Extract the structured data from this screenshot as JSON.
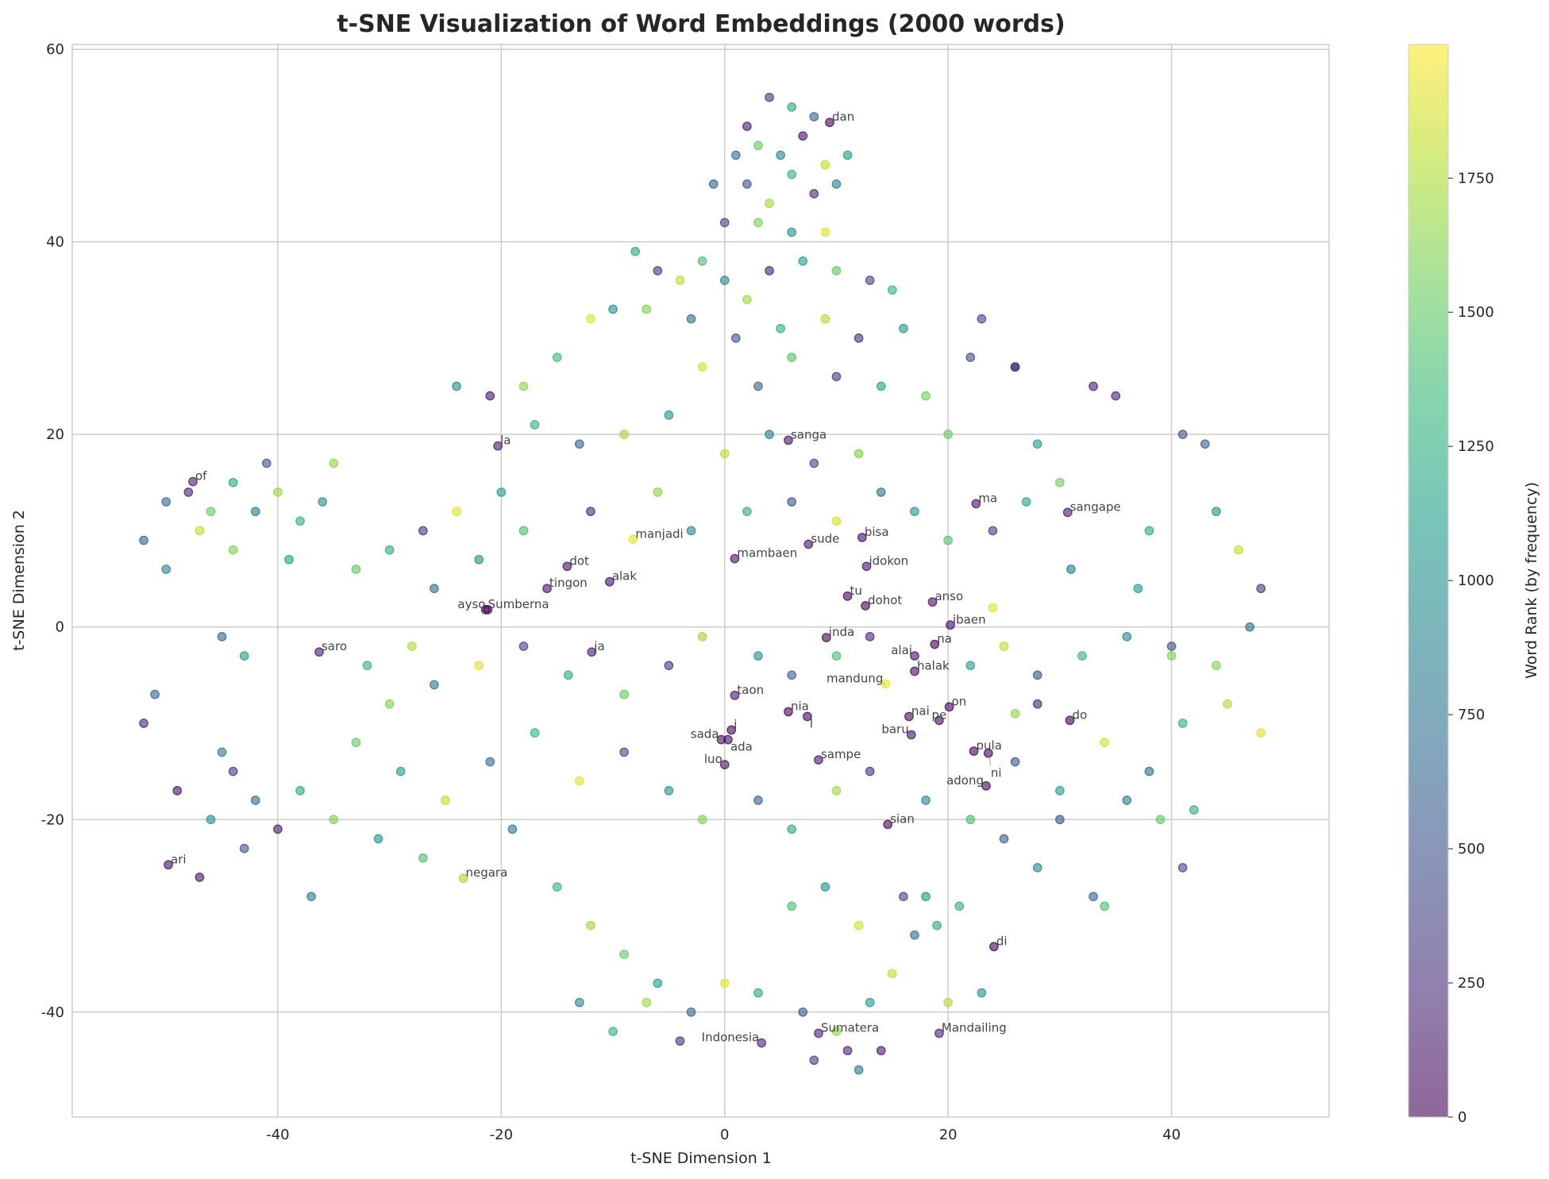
{
  "chart_data": {
    "type": "scatter",
    "title": "t-SNE Visualization of Word Embeddings (2000 words)",
    "xlabel": "t-SNE Dimension 1",
    "ylabel": "t-SNE Dimension 2",
    "xlim": [
      -58.4,
      54.1
    ],
    "ylim": [
      -50.9,
      60.5
    ],
    "xticks": [
      -40,
      -20,
      0,
      20,
      40
    ],
    "yticks": [
      -40,
      -20,
      0,
      20,
      40,
      60
    ],
    "grid": true,
    "colormap": "viridis",
    "point_alpha": 0.6,
    "colorbar": {
      "label": "Word Rank (by frequency)",
      "range": [
        0,
        1999
      ],
      "ticks": [
        0,
        250,
        500,
        750,
        1000,
        1250,
        1500,
        1750
      ]
    },
    "annotations": [
      {
        "word": "dan",
        "x": 9.4,
        "y": 52.4,
        "rank": 5
      },
      {
        "word": "sanga",
        "x": 5.7,
        "y": 19.4,
        "rank": 120
      },
      {
        "word": "la",
        "x": -20.3,
        "y": 18.8,
        "rank": 140
      },
      {
        "word": "of",
        "x": -47.6,
        "y": 15.1,
        "rank": 150
      },
      {
        "word": "ma",
        "x": 22.5,
        "y": 12.8,
        "rank": 100
      },
      {
        "word": "sangape",
        "x": 30.7,
        "y": 11.9,
        "rank": 130
      },
      {
        "word": "manjadi",
        "x": -8.2,
        "y": 9.1,
        "rank": 1900
      },
      {
        "word": "sude",
        "x": 7.5,
        "y": 8.6,
        "rank": 90
      },
      {
        "word": "bisa",
        "x": 12.3,
        "y": 9.3,
        "rank": 80
      },
      {
        "word": "mambaen",
        "x": 0.9,
        "y": 7.1,
        "rank": 95
      },
      {
        "word": "idokon",
        "x": 12.7,
        "y": 6.3,
        "rank": 110
      },
      {
        "word": "dot",
        "x": -14.1,
        "y": 6.3,
        "rank": 85
      },
      {
        "word": "alak",
        "x": -10.3,
        "y": 4.7,
        "rank": 75
      },
      {
        "word": "tingon",
        "x": -15.9,
        "y": 4.0,
        "rank": 105
      },
      {
        "word": "tu",
        "x": 11.0,
        "y": 3.2,
        "rank": 20
      },
      {
        "word": "dohot",
        "x": 12.6,
        "y": 2.2,
        "rank": 10
      },
      {
        "word": "anso",
        "x": 18.6,
        "y": 2.6,
        "rank": 70
      },
      {
        "word": "Sumberna",
        "x": -21.4,
        "y": 1.8,
        "rank": 30
      },
      {
        "word": "ayso",
        "x": -21.2,
        "y": 1.8,
        "rank": 32
      },
      {
        "word": "ibaen",
        "x": 20.2,
        "y": 0.2,
        "rank": 60
      },
      {
        "word": "inda",
        "x": 9.1,
        "y": -1.1,
        "rank": 35
      },
      {
        "word": "na",
        "x": 18.8,
        "y": -1.8,
        "rank": 1
      },
      {
        "word": "saro",
        "x": -36.3,
        "y": -2.6,
        "rank": 140
      },
      {
        "word": "ja",
        "x": -11.9,
        "y": -2.6,
        "rank": 150
      },
      {
        "word": "alai",
        "x": 17.0,
        "y": -3.0,
        "rank": 90
      },
      {
        "word": "halak",
        "x": 17.0,
        "y": -4.6,
        "rank": 50
      },
      {
        "word": "mandung",
        "x": 14.4,
        "y": -5.9,
        "rank": 1950
      },
      {
        "word": "taon",
        "x": 0.9,
        "y": -7.1,
        "rank": 120
      },
      {
        "word": "on",
        "x": 20.1,
        "y": -8.3,
        "rank": 15
      },
      {
        "word": "nia",
        "x": 5.7,
        "y": -8.8,
        "rank": 25
      },
      {
        "word": "l",
        "x": 7.4,
        "y": -9.3,
        "rank": 40
      },
      {
        "word": "nai",
        "x": 16.5,
        "y": -9.3,
        "rank": 55
      },
      {
        "word": "pe",
        "x": 19.2,
        "y": -9.7,
        "rank": 45
      },
      {
        "word": "do",
        "x": 30.9,
        "y": -9.7,
        "rank": 20
      },
      {
        "word": "i",
        "x": 0.6,
        "y": -10.7,
        "rank": 3
      },
      {
        "word": "sada",
        "x": -0.3,
        "y": -11.7,
        "rank": 65
      },
      {
        "word": "ada",
        "x": 0.3,
        "y": -11.7,
        "rank": 60
      },
      {
        "word": "baru",
        "x": 16.7,
        "y": -11.2,
        "rank": 95
      },
      {
        "word": "pula",
        "x": 22.3,
        "y": -12.9,
        "rank": 10
      },
      {
        "word": "ni",
        "x": 23.6,
        "y": -13.1,
        "rank": 2
      },
      {
        "word": "sampe",
        "x": 8.4,
        "y": -13.8,
        "rank": 130
      },
      {
        "word": "luo",
        "x": 0.0,
        "y": -14.3,
        "rank": 110
      },
      {
        "word": "adong",
        "x": 23.4,
        "y": -16.5,
        "rank": 30
      },
      {
        "word": "sian",
        "x": 14.6,
        "y": -20.5,
        "rank": 25
      },
      {
        "word": "negara",
        "x": -23.4,
        "y": -26.1,
        "rank": 1700
      },
      {
        "word": "ari",
        "x": -49.8,
        "y": -24.7,
        "rank": 80
      },
      {
        "word": "di",
        "x": 24.1,
        "y": -33.2,
        "rank": 4
      },
      {
        "word": "Sumatera",
        "x": 8.4,
        "y": -42.2,
        "rank": 200
      },
      {
        "word": "Indonesia",
        "x": 3.3,
        "y": -43.2,
        "rank": 190
      },
      {
        "word": "Mandailing",
        "x": 19.2,
        "y": -42.2,
        "rank": 180
      }
    ],
    "points": [
      [
        4,
        55,
        300
      ],
      [
        2,
        52,
        150
      ],
      [
        6,
        54,
        1200
      ],
      [
        8,
        53,
        600
      ],
      [
        3,
        50,
        1500
      ],
      [
        5,
        49,
        900
      ],
      [
        7,
        51,
        100
      ],
      [
        1,
        49,
        700
      ],
      [
        9,
        48,
        1800
      ],
      [
        11,
        49,
        1100
      ],
      [
        6,
        47,
        1300
      ],
      [
        2,
        46,
        500
      ],
      [
        4,
        44,
        1700
      ],
      [
        8,
        45,
        200
      ],
      [
        10,
        46,
        800
      ],
      [
        0,
        42,
        400
      ],
      [
        3,
        42,
        1600
      ],
      [
        6,
        41,
        1000
      ],
      [
        9,
        41,
        1900
      ],
      [
        -1,
        46,
        600
      ],
      [
        -2,
        38,
        1400
      ],
      [
        -4,
        36,
        1800
      ],
      [
        -6,
        37,
        300
      ],
      [
        -8,
        39,
        1200
      ],
      [
        0,
        36,
        900
      ],
      [
        2,
        34,
        1700
      ],
      [
        4,
        37,
        200
      ],
      [
        7,
        38,
        1100
      ],
      [
        10,
        37,
        1500
      ],
      [
        13,
        36,
        400
      ],
      [
        15,
        35,
        1300
      ],
      [
        -3,
        32,
        700
      ],
      [
        -7,
        33,
        1600
      ],
      [
        -10,
        33,
        1000
      ],
      [
        -12,
        32,
        1900
      ],
      [
        1,
        30,
        500
      ],
      [
        5,
        31,
        1250
      ],
      [
        9,
        32,
        1750
      ],
      [
        12,
        30,
        250
      ],
      [
        16,
        31,
        1050
      ],
      [
        -15,
        28,
        1350
      ],
      [
        -18,
        25,
        1650
      ],
      [
        -21,
        24,
        150
      ],
      [
        -24,
        25,
        950
      ],
      [
        -2,
        27,
        1850
      ],
      [
        3,
        25,
        650
      ],
      [
        6,
        28,
        1450
      ],
      [
        10,
        26,
        350
      ],
      [
        14,
        25,
        1150
      ],
      [
        18,
        24,
        1550
      ],
      [
        22,
        28,
        450
      ],
      [
        26,
        27,
        150
      ],
      [
        -5,
        22,
        1000
      ],
      [
        -9,
        20,
        1700
      ],
      [
        -13,
        19,
        600
      ],
      [
        -17,
        21,
        1300
      ],
      [
        0,
        18,
        1800
      ],
      [
        4,
        20,
        800
      ],
      [
        8,
        17,
        400
      ],
      [
        12,
        18,
        1600
      ],
      [
        -20,
        14,
        1100
      ],
      [
        -24,
        12,
        1900
      ],
      [
        -27,
        10,
        300
      ],
      [
        -30,
        8,
        1200
      ],
      [
        -33,
        6,
        1500
      ],
      [
        -26,
        4,
        700
      ],
      [
        -22,
        7,
        1000
      ],
      [
        -18,
        10,
        1400
      ],
      [
        -12,
        12,
        200
      ],
      [
        -6,
        14,
        1650
      ],
      [
        -3,
        10,
        900
      ],
      [
        2,
        12,
        1250
      ],
      [
        6,
        13,
        500
      ],
      [
        10,
        11,
        1850
      ],
      [
        14,
        14,
        750
      ],
      [
        17,
        12,
        1050
      ],
      [
        20,
        9,
        1450
      ],
      [
        24,
        10,
        350
      ],
      [
        27,
        13,
        1150
      ],
      [
        30,
        15,
        1550
      ],
      [
        -28,
        -2,
        1750
      ],
      [
        -32,
        -4,
        1300
      ],
      [
        -30,
        -8,
        1600
      ],
      [
        -26,
        -6,
        800
      ],
      [
        -22,
        -4,
        1900
      ],
      [
        -18,
        -2,
        400
      ],
      [
        -14,
        -5,
        1200
      ],
      [
        -9,
        -7,
        1500
      ],
      [
        -5,
        -4,
        300
      ],
      [
        -2,
        -1,
        1700
      ],
      [
        3,
        -3,
        1000
      ],
      [
        6,
        -5,
        600
      ],
      [
        10,
        -3,
        1400
      ],
      [
        13,
        -1,
        200
      ],
      [
        22,
        -4,
        1100
      ],
      [
        25,
        -2,
        1800
      ],
      [
        28,
        -5,
        500
      ],
      [
        32,
        -3,
        1300
      ],
      [
        36,
        -1,
        900
      ],
      [
        40,
        -3,
        1600
      ],
      [
        -33,
        -12,
        1500
      ],
      [
        -29,
        -15,
        1100
      ],
      [
        -25,
        -18,
        1800
      ],
      [
        -21,
        -14,
        700
      ],
      [
        -17,
        -11,
        1300
      ],
      [
        -13,
        -16,
        1900
      ],
      [
        -9,
        -13,
        400
      ],
      [
        -5,
        -17,
        1000
      ],
      [
        -2,
        -20,
        1600
      ],
      [
        3,
        -18,
        600
      ],
      [
        6,
        -21,
        1200
      ],
      [
        10,
        -17,
        1700
      ],
      [
        13,
        -15,
        300
      ],
      [
        18,
        -18,
        900
      ],
      [
        22,
        -20,
        1400
      ],
      [
        26,
        -14,
        500
      ],
      [
        30,
        -17,
        1100
      ],
      [
        34,
        -12,
        1850
      ],
      [
        38,
        -15,
        700
      ],
      [
        42,
        -19,
        1250
      ],
      [
        -35,
        -20,
        1600
      ],
      [
        -31,
        -22,
        1000
      ],
      [
        -27,
        -24,
        1400
      ],
      [
        -19,
        -21,
        800
      ],
      [
        -15,
        -27,
        1300
      ],
      [
        -12,
        -31,
        1700
      ],
      [
        -9,
        -34,
        1500
      ],
      [
        -6,
        -37,
        1100
      ],
      [
        -3,
        -40,
        600
      ],
      [
        0,
        -37,
        1900
      ],
      [
        -13,
        -39,
        900
      ],
      [
        -10,
        -42,
        1300
      ],
      [
        -7,
        -39,
        1700
      ],
      [
        -4,
        -43,
        300
      ],
      [
        3,
        -38,
        1200
      ],
      [
        7,
        -40,
        500
      ],
      [
        10,
        -42,
        1650
      ],
      [
        13,
        -39,
        1100
      ],
      [
        15,
        -36,
        1800
      ],
      [
        17,
        -32,
        700
      ],
      [
        6,
        -29,
        1400
      ],
      [
        9,
        -27,
        1000
      ],
      [
        12,
        -31,
        1850
      ],
      [
        16,
        -28,
        400
      ],
      [
        19,
        -31,
        1200
      ],
      [
        20,
        -39,
        1750
      ],
      [
        11,
        -44,
        200
      ],
      [
        8,
        -45,
        350
      ],
      [
        14,
        -44,
        150
      ],
      [
        12,
        -46,
        800
      ],
      [
        -52,
        9,
        600
      ],
      [
        -50,
        13,
        700
      ],
      [
        -48,
        14,
        200
      ],
      [
        -46,
        12,
        1500
      ],
      [
        -44,
        15,
        1200
      ],
      [
        -42,
        12,
        800
      ],
      [
        -40,
        14,
        1700
      ],
      [
        -38,
        11,
        1300
      ],
      [
        -36,
        13,
        1000
      ],
      [
        -47,
        10,
        1800
      ],
      [
        -44,
        8,
        1600
      ],
      [
        -41,
        17,
        500
      ],
      [
        -39,
        7,
        1100
      ],
      [
        -35,
        17,
        1650
      ],
      [
        -50,
        6,
        900
      ],
      [
        -52,
        -10,
        200
      ],
      [
        -51,
        -7,
        600
      ],
      [
        -49,
        -17,
        100
      ],
      [
        -46,
        -20,
        1000
      ],
      [
        -44,
        -15,
        300
      ],
      [
        -42,
        -18,
        700
      ],
      [
        -40,
        -21,
        150
      ],
      [
        -43,
        -23,
        500
      ],
      [
        -45,
        -13,
        800
      ],
      [
        -38,
        -17,
        1200
      ],
      [
        -47,
        -26,
        100
      ],
      [
        -45,
        -1,
        600
      ],
      [
        -43,
        -3,
        1100
      ],
      [
        -37,
        -28,
        800
      ],
      [
        33,
        25,
        150
      ],
      [
        35,
        24,
        200
      ],
      [
        41,
        20,
        500
      ],
      [
        43,
        19,
        600
      ],
      [
        38,
        10,
        1200
      ],
      [
        44,
        12,
        1000
      ],
      [
        46,
        8,
        1800
      ],
      [
        48,
        4,
        300
      ],
      [
        47,
        0,
        700
      ],
      [
        44,
        -4,
        1600
      ],
      [
        41,
        -10,
        1300
      ],
      [
        45,
        -8,
        1750
      ],
      [
        48,
        -11,
        1900
      ],
      [
        39,
        -20,
        1500
      ],
      [
        41,
        -25,
        400
      ],
      [
        34,
        -29,
        1400
      ],
      [
        33,
        -28,
        600
      ],
      [
        36,
        -18,
        800
      ],
      [
        37,
        4,
        1100
      ],
      [
        40,
        -2,
        500
      ],
      [
        23,
        32,
        400
      ],
      [
        26,
        27,
        300
      ],
      [
        20,
        20,
        1500
      ],
      [
        28,
        19,
        1100
      ],
      [
        31,
        6,
        800
      ],
      [
        24,
        2,
        1900
      ],
      [
        28,
        -8,
        200
      ],
      [
        30,
        -20,
        500
      ],
      [
        28,
        -25,
        900
      ],
      [
        25,
        -22,
        600
      ],
      [
        23,
        -38,
        1000
      ],
      [
        26,
        -9,
        1650
      ],
      [
        21,
        -29,
        1250
      ],
      [
        18,
        -28,
        1050
      ]
    ]
  }
}
